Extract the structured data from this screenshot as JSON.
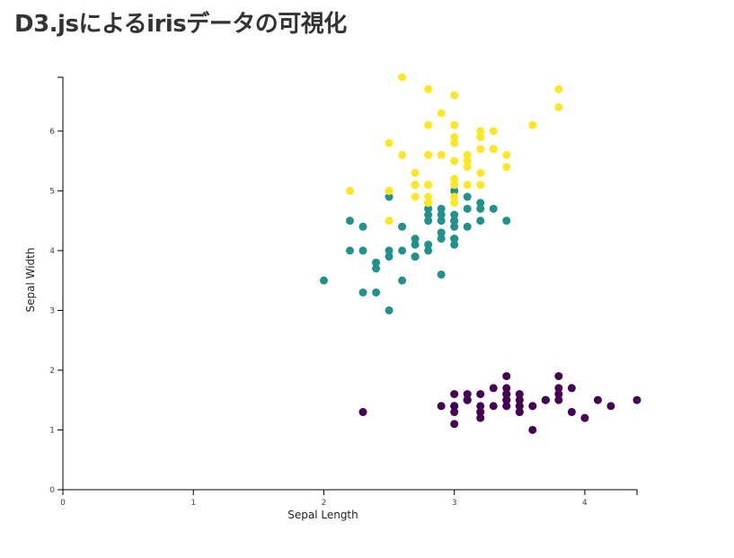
{
  "page": {
    "title": "D3.jsによるirisデータの可視化"
  },
  "chart_data": {
    "type": "scatter",
    "xlabel": "Sepal Length",
    "ylabel": "Sepal Width",
    "xlim": [
      0,
      4.4
    ],
    "ylim": [
      0,
      6.9
    ],
    "xticks": [
      0,
      1,
      2,
      3,
      4
    ],
    "yticks": [
      0,
      1,
      2,
      3,
      4,
      5,
      6
    ],
    "grid": false,
    "colors": [
      "#440154",
      "#21918c",
      "#fde725"
    ],
    "series": [
      {
        "color": "#440154",
        "points": [
          [
            3.5,
            1.4
          ],
          [
            3.0,
            1.4
          ],
          [
            3.2,
            1.3
          ],
          [
            3.1,
            1.5
          ],
          [
            3.6,
            1.4
          ],
          [
            3.9,
            1.7
          ],
          [
            3.4,
            1.4
          ],
          [
            3.4,
            1.5
          ],
          [
            2.9,
            1.4
          ],
          [
            3.1,
            1.5
          ],
          [
            3.7,
            1.5
          ],
          [
            3.4,
            1.6
          ],
          [
            3.0,
            1.4
          ],
          [
            3.0,
            1.1
          ],
          [
            4.0,
            1.2
          ],
          [
            4.4,
            1.5
          ],
          [
            3.9,
            1.3
          ],
          [
            3.5,
            1.4
          ],
          [
            3.8,
            1.7
          ],
          [
            3.8,
            1.5
          ],
          [
            3.4,
            1.7
          ],
          [
            3.7,
            1.5
          ],
          [
            3.6,
            1.0
          ],
          [
            3.3,
            1.7
          ],
          [
            3.4,
            1.9
          ],
          [
            3.0,
            1.6
          ],
          [
            3.4,
            1.6
          ],
          [
            3.5,
            1.5
          ],
          [
            3.4,
            1.4
          ],
          [
            3.2,
            1.6
          ],
          [
            3.1,
            1.6
          ],
          [
            3.4,
            1.5
          ],
          [
            4.1,
            1.5
          ],
          [
            4.2,
            1.4
          ],
          [
            3.1,
            1.5
          ],
          [
            3.2,
            1.2
          ],
          [
            3.5,
            1.3
          ],
          [
            3.6,
            1.4
          ],
          [
            3.0,
            1.3
          ],
          [
            3.4,
            1.5
          ],
          [
            3.5,
            1.3
          ],
          [
            2.3,
            1.3
          ],
          [
            3.2,
            1.3
          ],
          [
            3.5,
            1.6
          ],
          [
            3.8,
            1.9
          ],
          [
            3.0,
            1.4
          ],
          [
            3.8,
            1.6
          ],
          [
            3.2,
            1.4
          ],
          [
            3.7,
            1.5
          ],
          [
            3.3,
            1.4
          ]
        ]
      },
      {
        "color": "#21918c",
        "points": [
          [
            3.2,
            4.7
          ],
          [
            3.2,
            4.5
          ],
          [
            3.1,
            4.9
          ],
          [
            2.3,
            4.0
          ],
          [
            2.8,
            4.6
          ],
          [
            2.8,
            4.5
          ],
          [
            3.3,
            4.7
          ],
          [
            2.4,
            3.3
          ],
          [
            2.9,
            4.6
          ],
          [
            2.7,
            3.9
          ],
          [
            2.0,
            3.5
          ],
          [
            3.0,
            4.2
          ],
          [
            2.2,
            4.0
          ],
          [
            2.9,
            4.7
          ],
          [
            2.9,
            3.6
          ],
          [
            3.1,
            4.4
          ],
          [
            3.0,
            4.5
          ],
          [
            2.7,
            4.1
          ],
          [
            2.2,
            4.5
          ],
          [
            2.5,
            3.9
          ],
          [
            3.2,
            4.8
          ],
          [
            2.8,
            4.0
          ],
          [
            2.5,
            4.9
          ],
          [
            2.8,
            4.7
          ],
          [
            2.9,
            4.3
          ],
          [
            3.0,
            4.4
          ],
          [
            2.8,
            4.8
          ],
          [
            3.0,
            5.0
          ],
          [
            2.9,
            4.5
          ],
          [
            2.6,
            3.5
          ],
          [
            2.4,
            3.8
          ],
          [
            2.4,
            3.7
          ],
          [
            2.7,
            3.9
          ],
          [
            2.7,
            5.1
          ],
          [
            3.0,
            4.5
          ],
          [
            3.4,
            4.5
          ],
          [
            3.1,
            4.7
          ],
          [
            2.3,
            4.4
          ],
          [
            3.0,
            4.1
          ],
          [
            2.5,
            4.0
          ],
          [
            2.6,
            4.4
          ],
          [
            3.0,
            4.6
          ],
          [
            2.6,
            4.0
          ],
          [
            2.3,
            3.3
          ],
          [
            2.7,
            4.2
          ],
          [
            3.0,
            4.2
          ],
          [
            2.9,
            4.2
          ],
          [
            2.9,
            4.3
          ],
          [
            2.5,
            3.0
          ],
          [
            2.8,
            4.1
          ]
        ]
      },
      {
        "color": "#fde725",
        "points": [
          [
            3.3,
            6.0
          ],
          [
            2.7,
            5.1
          ],
          [
            3.0,
            5.9
          ],
          [
            2.9,
            5.6
          ],
          [
            3.0,
            5.8
          ],
          [
            3.0,
            6.6
          ],
          [
            2.5,
            4.5
          ],
          [
            2.9,
            6.3
          ],
          [
            2.5,
            5.8
          ],
          [
            3.6,
            6.1
          ],
          [
            3.2,
            5.1
          ],
          [
            2.7,
            5.3
          ],
          [
            3.0,
            5.5
          ],
          [
            2.5,
            5.0
          ],
          [
            2.8,
            5.1
          ],
          [
            3.2,
            5.3
          ],
          [
            3.0,
            5.5
          ],
          [
            3.8,
            6.7
          ],
          [
            2.6,
            6.9
          ],
          [
            2.2,
            5.0
          ],
          [
            3.2,
            5.7
          ],
          [
            2.8,
            4.9
          ],
          [
            2.8,
            6.7
          ],
          [
            2.7,
            4.9
          ],
          [
            3.3,
            5.7
          ],
          [
            3.2,
            6.0
          ],
          [
            2.8,
            4.8
          ],
          [
            3.0,
            4.9
          ],
          [
            2.8,
            5.6
          ],
          [
            3.0,
            5.8
          ],
          [
            2.8,
            6.1
          ],
          [
            3.8,
            6.4
          ],
          [
            2.8,
            5.6
          ],
          [
            2.8,
            5.1
          ],
          [
            2.6,
            5.6
          ],
          [
            3.0,
            6.1
          ],
          [
            3.4,
            5.6
          ],
          [
            3.1,
            5.5
          ],
          [
            3.0,
            4.8
          ],
          [
            3.1,
            5.4
          ],
          [
            3.1,
            5.6
          ],
          [
            3.1,
            5.1
          ],
          [
            2.7,
            5.1
          ],
          [
            3.2,
            5.9
          ],
          [
            3.3,
            5.7
          ],
          [
            3.0,
            5.2
          ],
          [
            2.5,
            5.0
          ],
          [
            3.0,
            5.2
          ],
          [
            3.4,
            5.4
          ],
          [
            3.0,
            5.1
          ]
        ]
      }
    ]
  }
}
